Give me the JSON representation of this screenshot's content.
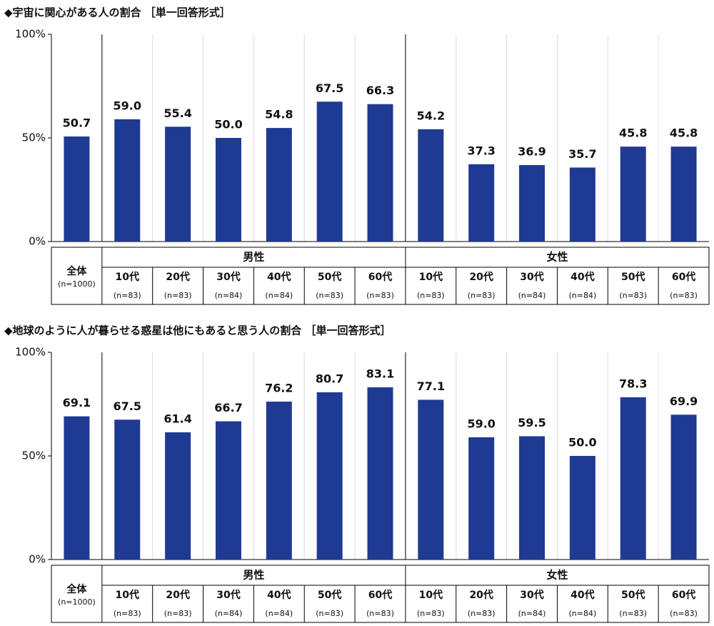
{
  "chart_data": [
    {
      "type": "bar",
      "title": "◆宇宙に関心がある人の割合 ［単一回答形式］",
      "color": "#1f3a93",
      "ylim": [
        0,
        100
      ],
      "yticks": [
        {
          "value": 0,
          "label": "0%"
        },
        {
          "value": 50,
          "label": "50%"
        },
        {
          "value": 100,
          "label": "100%"
        }
      ],
      "grid": false,
      "overall": {
        "label": "全体",
        "sample_size": "(n=1000)",
        "value": 50.7
      },
      "groups": [
        {
          "label": "男性",
          "categories": [
            "10代",
            "20代",
            "30代",
            "40代",
            "50代",
            "60代"
          ],
          "sample_sizes": [
            "(n=83)",
            "(n=83)",
            "(n=84)",
            "(n=84)",
            "(n=83)",
            "(n=83)"
          ],
          "values": [
            59.0,
            55.4,
            50.0,
            54.8,
            67.5,
            66.3
          ]
        },
        {
          "label": "女性",
          "categories": [
            "10代",
            "20代",
            "30代",
            "40代",
            "50代",
            "60代"
          ],
          "sample_sizes": [
            "(n=83)",
            "(n=83)",
            "(n=84)",
            "(n=84)",
            "(n=83)",
            "(n=83)"
          ],
          "values": [
            54.2,
            37.3,
            36.9,
            35.7,
            45.8,
            45.8
          ]
        }
      ],
      "value_labels": {
        "overall": "50.7",
        "groups": [
          [
            "59.0",
            "55.4",
            "50.0",
            "54.8",
            "67.5",
            "66.3"
          ],
          [
            "54.2",
            "37.3",
            "36.9",
            "35.7",
            "45.8",
            "45.8"
          ]
        ]
      }
    },
    {
      "type": "bar",
      "title": "◆地球のように人が暮らせる惑星は他にもあると思う人の割合 ［単一回答形式］",
      "color": "#1f3a93",
      "ylim": [
        0,
        100
      ],
      "yticks": [
        {
          "value": 0,
          "label": "0%"
        },
        {
          "value": 50,
          "label": "50%"
        },
        {
          "value": 100,
          "label": "100%"
        }
      ],
      "grid": false,
      "overall": {
        "label": "全体",
        "sample_size": "(n=1000)",
        "value": 69.1
      },
      "groups": [
        {
          "label": "男性",
          "categories": [
            "10代",
            "20代",
            "30代",
            "40代",
            "50代",
            "60代"
          ],
          "sample_sizes": [
            "(n=83)",
            "(n=83)",
            "(n=84)",
            "(n=84)",
            "(n=83)",
            "(n=83)"
          ],
          "values": [
            67.5,
            61.4,
            66.7,
            76.2,
            80.7,
            83.1
          ]
        },
        {
          "label": "女性",
          "categories": [
            "10代",
            "20代",
            "30代",
            "40代",
            "50代",
            "60代"
          ],
          "sample_sizes": [
            "(n=83)",
            "(n=83)",
            "(n=84)",
            "(n=84)",
            "(n=83)",
            "(n=83)"
          ],
          "values": [
            77.1,
            59.0,
            59.5,
            50.0,
            78.3,
            69.9
          ]
        }
      ],
      "value_labels": {
        "overall": "69.1",
        "groups": [
          [
            "67.5",
            "61.4",
            "66.7",
            "76.2",
            "80.7",
            "83.1"
          ],
          [
            "77.1",
            "59.0",
            "59.5",
            "50.0",
            "78.3",
            "69.9"
          ]
        ]
      }
    }
  ]
}
